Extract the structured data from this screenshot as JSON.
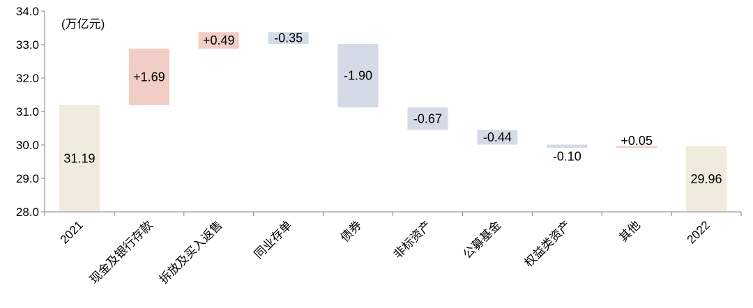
{
  "chart_data": {
    "type": "waterfall",
    "unit_label": "(万亿元)",
    "ylim": [
      28.0,
      34.0
    ],
    "y_ticks": [
      "28.0",
      "29.0",
      "30.0",
      "31.0",
      "32.0",
      "33.0",
      "34.0"
    ],
    "grid": false,
    "categories": [
      "2021",
      "现金及银行存款",
      "拆放及买入返售",
      "同业存单",
      "债券",
      "非标资产",
      "公募基金",
      "权益类资产",
      "其他",
      "2022"
    ],
    "values": [
      31.19,
      1.69,
      0.49,
      -0.35,
      -1.9,
      -0.67,
      -0.44,
      -0.1,
      0.05,
      29.96
    ],
    "kinds": [
      "total",
      "delta",
      "delta",
      "delta",
      "delta",
      "delta",
      "delta",
      "delta",
      "delta",
      "total"
    ],
    "labels": [
      "31.19",
      "+1.69",
      "+0.49",
      "-0.35",
      "-1.90",
      "-0.67",
      "-0.44",
      "-0.10",
      "+0.05",
      "29.96"
    ],
    "colors": {
      "total": "#f0ebdd",
      "increase": "#f0cdc5",
      "decrease": "#d5dbe6",
      "axis": "#808080"
    }
  }
}
